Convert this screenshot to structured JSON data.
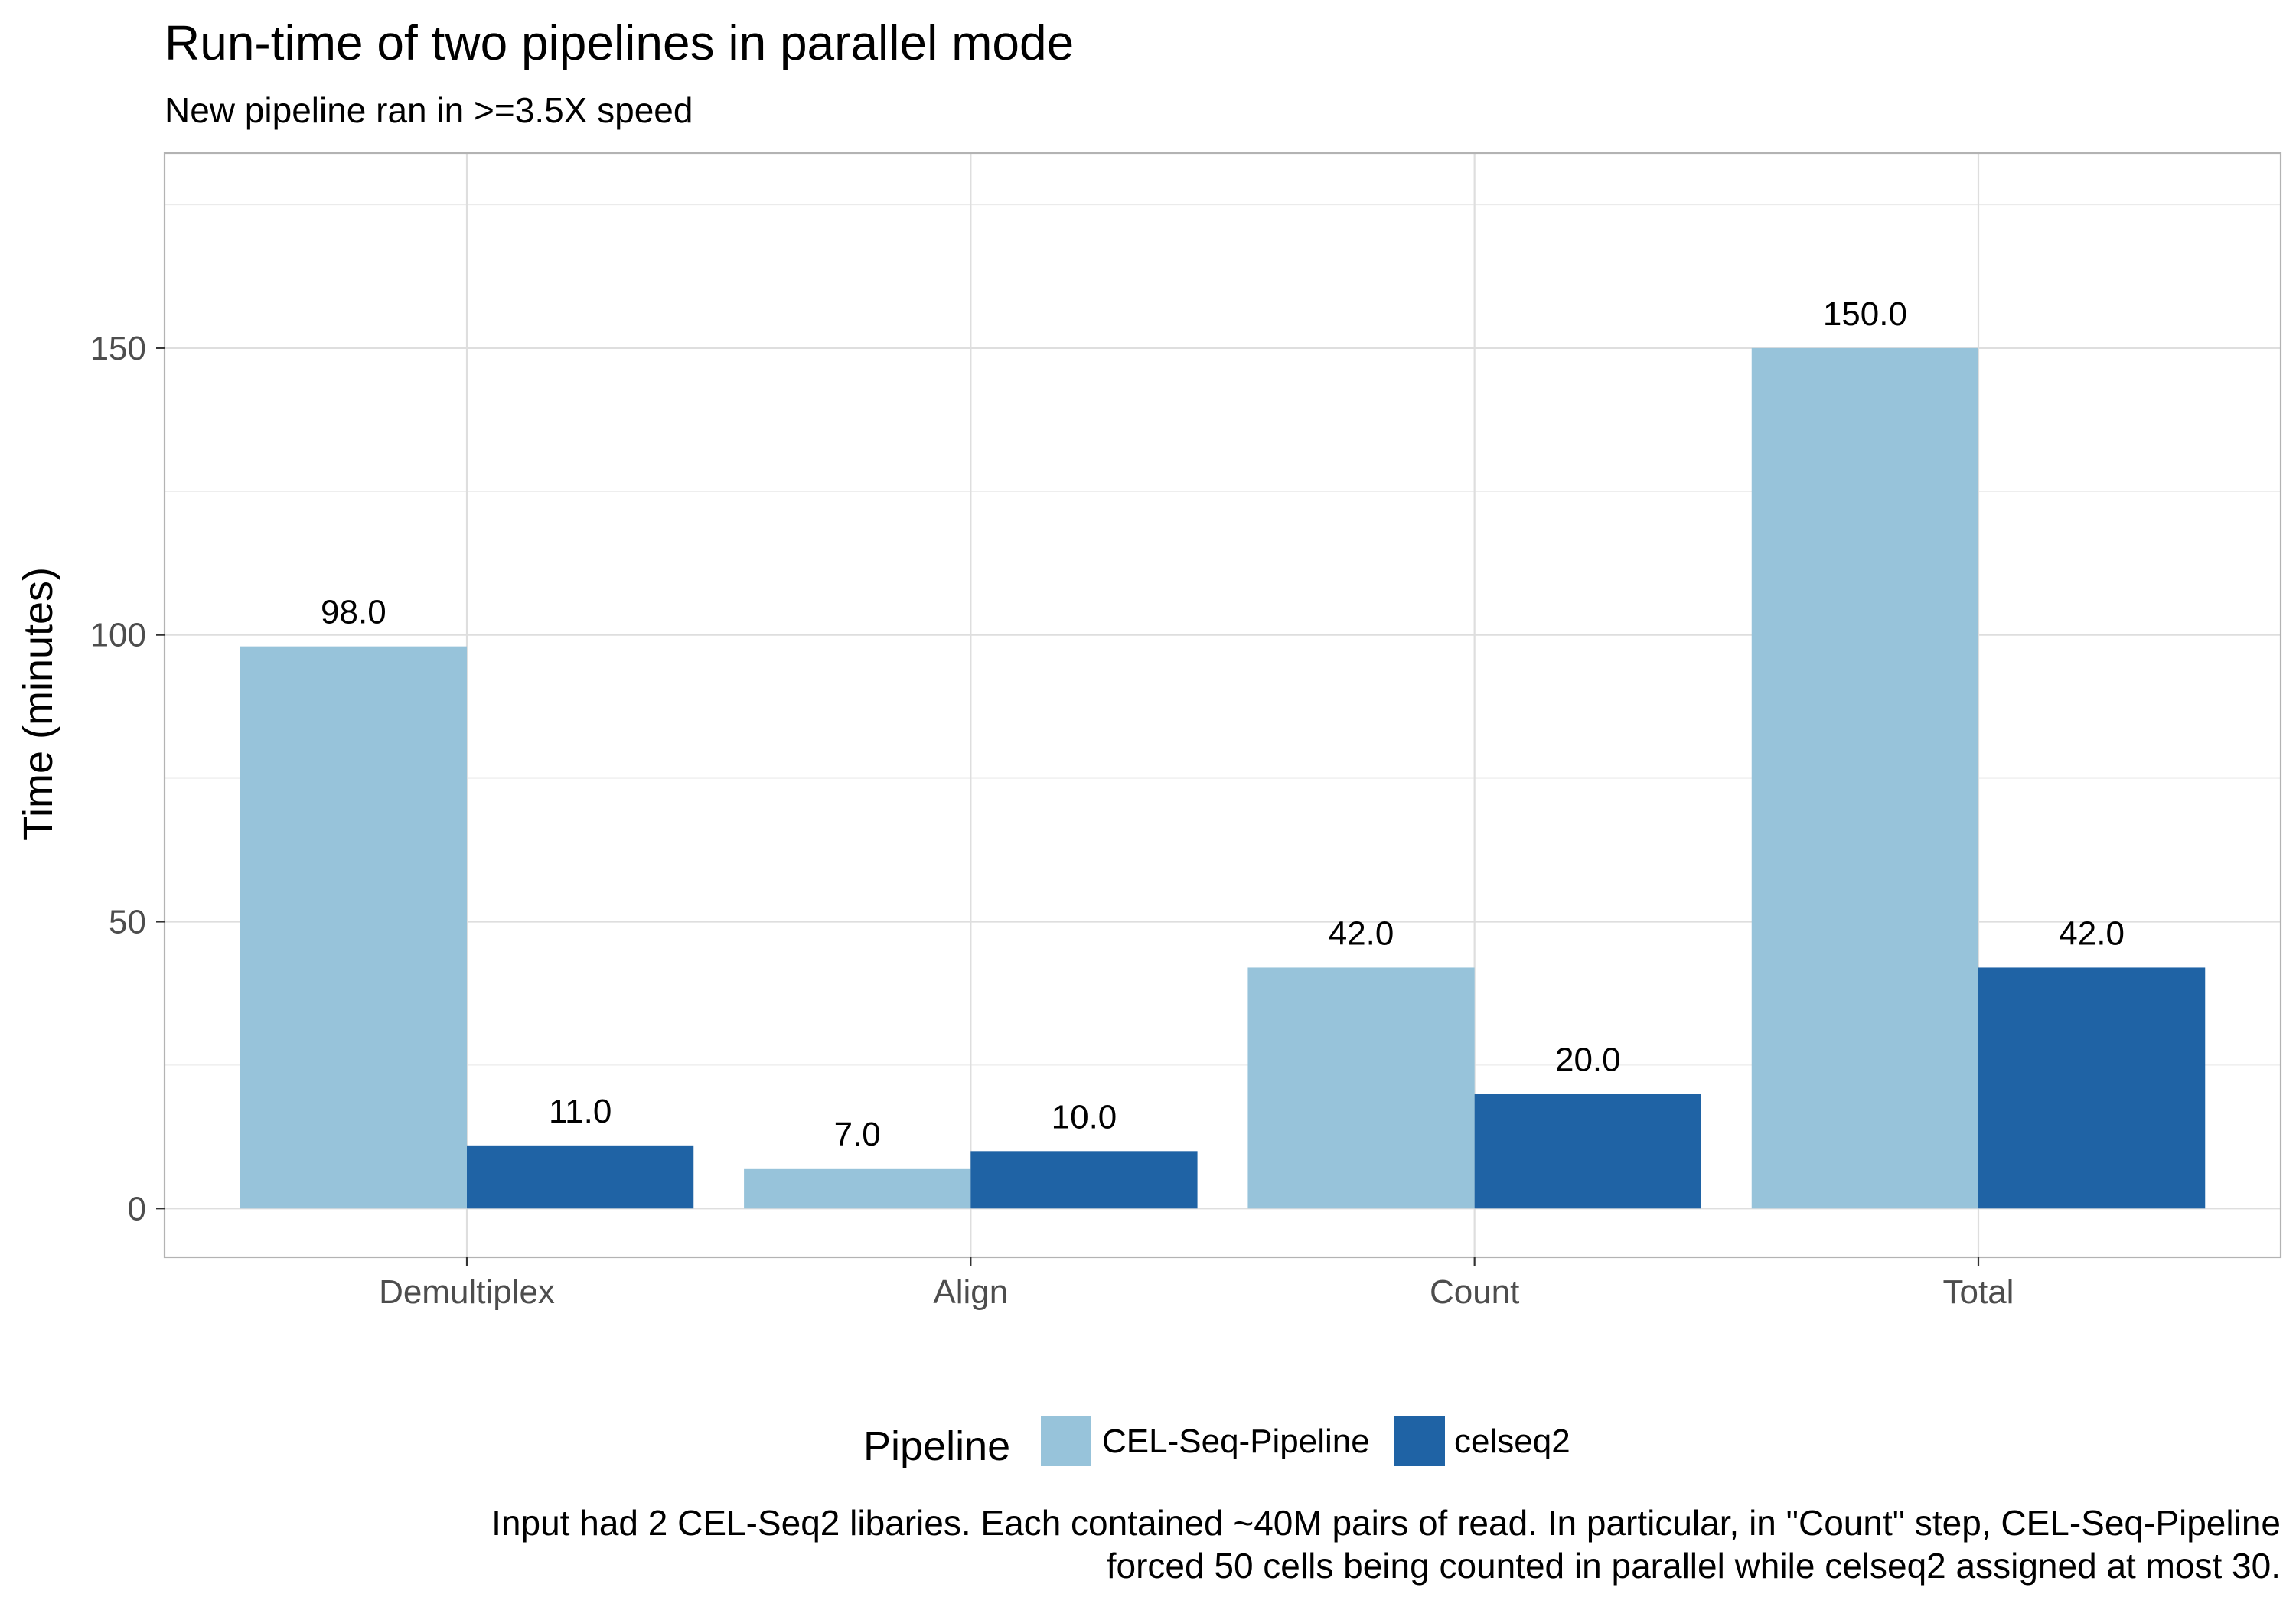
{
  "chart_data": {
    "type": "bar",
    "title": "Run-time of two pipelines in parallel mode",
    "subtitle": "New pipeline ran in >=3.5X speed",
    "xlabel": "",
    "ylabel": "Time (minutes)",
    "ylim": [
      -8.5,
      184
    ],
    "yticks": [
      0,
      50,
      100,
      150
    ],
    "categories": [
      "Demultiplex",
      "Align",
      "Count",
      "Total"
    ],
    "series": [
      {
        "name": "CEL-Seq-Pipeline",
        "color": "#97c3da",
        "values": [
          98.0,
          7.0,
          42.0,
          150.0
        ],
        "labels": [
          "98.0",
          "7.0",
          "42.0",
          "150.0"
        ]
      },
      {
        "name": "celseq2",
        "color": "#1f63a5",
        "values": [
          11.0,
          10.0,
          20.0,
          42.0
        ],
        "labels": [
          "11.0",
          "10.0",
          "20.0",
          "42.0"
        ]
      }
    ],
    "legend_title": "Pipeline",
    "legend_position": "bottom",
    "grid": true,
    "caption": [
      "Input had 2 CEL-Seq2 libaries. Each contained ~40M pairs of read. In particular, in \"Count\" step, CEL-Seq-Pipeline",
      "forced 50 cells being counted in parallel while celseq2 assigned at most 30."
    ]
  }
}
